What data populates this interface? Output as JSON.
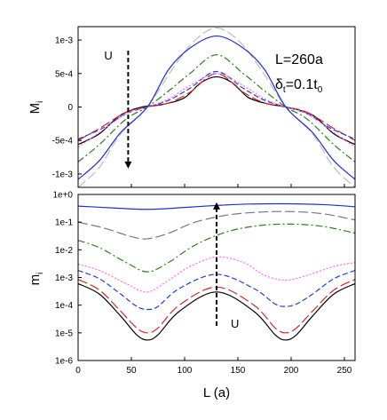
{
  "chart_data": [
    {
      "type": "line",
      "panel": "top",
      "ylabel": "M",
      "ylabel_sub": "i",
      "xlim": [
        0,
        260
      ],
      "ylim": [
        -0.0012,
        0.0012
      ],
      "x_ticks": [
        "0",
        "50",
        "100",
        "150",
        "200",
        "250"
      ],
      "x_tick_values": [
        0,
        50,
        100,
        150,
        200,
        250
      ],
      "y_ticks": [
        "-1e-3",
        "-5e-4",
        "0",
        "5e-4",
        "1e-3"
      ],
      "y_tick_values": [
        -0.001,
        -0.0005,
        0,
        0.0005,
        0.001
      ],
      "annotation_main": "L=260a",
      "annotation_delta": "δ",
      "annotation_delta_sub": "t",
      "annotation_delta_rest": "=0.1t",
      "annotation_delta_sub2": "0",
      "arrow_label": "U",
      "arrow_x": 47,
      "arrow_from": 0.00084,
      "arrow_to": -0.00092,
      "series": [
        {
          "color": "#000000",
          "dash": "solid",
          "values": [
            [
              0,
              -0.00056
            ],
            [
              20,
              -0.0004
            ],
            [
              40,
              -0.00012
            ],
            [
              60,
              0.0
            ],
            [
              80,
              4e-05
            ],
            [
              100,
              0.00014
            ],
            [
              115,
              0.00036
            ],
            [
              130,
              0.00045
            ],
            [
              145,
              0.00036
            ],
            [
              160,
              0.00014
            ],
            [
              180,
              4e-05
            ],
            [
              195,
              0.0
            ],
            [
              220,
              -0.00012
            ],
            [
              240,
              -0.0004
            ],
            [
              260,
              -0.00056
            ]
          ]
        },
        {
          "color": "#d62728",
          "dash": "longdash",
          "values": [
            [
              0,
              -0.0005
            ],
            [
              20,
              -0.00032
            ],
            [
              45,
              -8e-05
            ],
            [
              65,
              0.0
            ],
            [
              85,
              6e-05
            ],
            [
              105,
              0.00022
            ],
            [
              130,
              0.0005
            ],
            [
              155,
              0.00022
            ],
            [
              175,
              6e-05
            ],
            [
              195,
              0.0
            ],
            [
              215,
              -8e-05
            ],
            [
              240,
              -0.00032
            ],
            [
              260,
              -0.0005
            ]
          ]
        },
        {
          "color": "#1f3fd6",
          "dash": "dash",
          "values": [
            [
              0,
              -0.00048
            ],
            [
              25,
              -0.0003
            ],
            [
              45,
              -0.0001
            ],
            [
              65,
              0.0
            ],
            [
              85,
              0.0001
            ],
            [
              105,
              0.00028
            ],
            [
              130,
              0.00053
            ],
            [
              155,
              0.00028
            ],
            [
              175,
              0.0001
            ],
            [
              195,
              0.0
            ],
            [
              215,
              -0.0001
            ],
            [
              235,
              -0.0003
            ],
            [
              260,
              -0.00048
            ]
          ]
        },
        {
          "color": "#ff66ff",
          "dash": "dot",
          "values": [
            [
              0,
              -0.0006
            ],
            [
              20,
              -0.00038
            ],
            [
              45,
              -0.0001
            ],
            [
              65,
              0.0
            ],
            [
              85,
              0.00012
            ],
            [
              105,
              0.00032
            ],
            [
              130,
              0.0005
            ],
            [
              155,
              0.00032
            ],
            [
              175,
              0.00012
            ],
            [
              195,
              0.0
            ],
            [
              215,
              -0.0001
            ],
            [
              240,
              -0.00038
            ],
            [
              260,
              -0.0006
            ]
          ]
        },
        {
          "color": "#2e7d1a",
          "dash": "dashdot",
          "values": [
            [
              0,
              -0.00082
            ],
            [
              20,
              -0.00056
            ],
            [
              45,
              -0.00018
            ],
            [
              65,
              0.0
            ],
            [
              85,
              0.00024
            ],
            [
              105,
              0.0005
            ],
            [
              130,
              0.00078
            ],
            [
              155,
              0.0005
            ],
            [
              175,
              0.00024
            ],
            [
              195,
              0.0
            ],
            [
              215,
              -0.00018
            ],
            [
              240,
              -0.00056
            ],
            [
              260,
              -0.00082
            ]
          ]
        },
        {
          "color": "#bdbdbd",
          "dash": "longdash",
          "values": [
            [
              0,
              -0.0012
            ],
            [
              20,
              -0.0009
            ],
            [
              40,
              -0.0004
            ],
            [
              65,
              0.0
            ],
            [
              90,
              0.0006
            ],
            [
              110,
              0.001
            ],
            [
              130,
              0.00118
            ],
            [
              150,
              0.001
            ],
            [
              170,
              0.0006
            ],
            [
              195,
              0.0
            ],
            [
              220,
              -0.0004
            ],
            [
              240,
              -0.0009
            ],
            [
              260,
              -0.0012
            ]
          ]
        },
        {
          "color": "#1f2fd6",
          "dash": "solid",
          "values": [
            [
              0,
              -0.00108
            ],
            [
              20,
              -0.0008
            ],
            [
              40,
              -0.00038
            ],
            [
              65,
              0.0
            ],
            [
              85,
              0.00056
            ],
            [
              105,
              0.00088
            ],
            [
              130,
              0.00106
            ],
            [
              155,
              0.00088
            ],
            [
              175,
              0.00056
            ],
            [
              195,
              0.0
            ],
            [
              220,
              -0.00038
            ],
            [
              240,
              -0.0008
            ],
            [
              260,
              -0.00108
            ]
          ]
        }
      ]
    },
    {
      "type": "line",
      "panel": "bottom",
      "scale": "log",
      "xlabel": "L (a)",
      "ylabel": "m",
      "ylabel_sub": "i",
      "xlim": [
        0,
        260
      ],
      "ylim": [
        1e-06,
        1
      ],
      "x_ticks": [
        "0",
        "50",
        "100",
        "150",
        "200",
        "250"
      ],
      "x_tick_values": [
        0,
        50,
        100,
        150,
        200,
        250
      ],
      "y_ticks": [
        "1e-6",
        "1e-5",
        "1e-4",
        "1e-3",
        "1e-2",
        "1e-1",
        "1e+0"
      ],
      "y_tick_values": [
        1e-06,
        1e-05,
        0.0001,
        0.001,
        0.01,
        0.1,
        1
      ],
      "arrow_label": "U",
      "arrow_x": 130,
      "arrow_from": 1.8e-05,
      "arrow_to": 0.52,
      "series": [
        {
          "color": "#000000",
          "dash": "solid",
          "values": [
            [
              0,
              0.0006
            ],
            [
              20,
              0.00025
            ],
            [
              40,
              4e-05
            ],
            [
              55,
              8.5e-06
            ],
            [
              65,
              5.5e-06
            ],
            [
              75,
              8.5e-06
            ],
            [
              95,
              6e-05
            ],
            [
              130,
              0.0003
            ],
            [
              165,
              6e-05
            ],
            [
              185,
              8.5e-06
            ],
            [
              195,
              5.5e-06
            ],
            [
              205,
              8.5e-06
            ],
            [
              220,
              4e-05
            ],
            [
              240,
              0.00025
            ],
            [
              260,
              0.0006
            ]
          ]
        },
        {
          "color": "#d62728",
          "dash": "longdash",
          "values": [
            [
              0,
              0.00085
            ],
            [
              20,
              0.00035
            ],
            [
              40,
              6e-05
            ],
            [
              55,
              1.5e-05
            ],
            [
              65,
              1e-05
            ],
            [
              75,
              1.5e-05
            ],
            [
              95,
              0.0001
            ],
            [
              130,
              0.00045
            ],
            [
              165,
              0.0001
            ],
            [
              185,
              1.5e-05
            ],
            [
              195,
              1e-05
            ],
            [
              205,
              1.5e-05
            ],
            [
              220,
              6e-05
            ],
            [
              240,
              0.00035
            ],
            [
              260,
              0.00085
            ]
          ]
        },
        {
          "color": "#1f3fd6",
          "dash": "dash",
          "values": [
            [
              0,
              0.0018
            ],
            [
              20,
              0.0009
            ],
            [
              40,
              0.00025
            ],
            [
              55,
              9e-05
            ],
            [
              65,
              7e-05
            ],
            [
              75,
              9e-05
            ],
            [
              95,
              0.0004
            ],
            [
              130,
              0.0013
            ],
            [
              165,
              0.0004
            ],
            [
              185,
              0.00011
            ],
            [
              195,
              9e-05
            ],
            [
              205,
              0.00011
            ],
            [
              220,
              0.00025
            ],
            [
              240,
              0.0009
            ],
            [
              260,
              0.0018
            ]
          ]
        },
        {
          "color": "#ff66ff",
          "dash": "dot",
          "values": [
            [
              0,
              0.003
            ],
            [
              20,
              0.0018
            ],
            [
              45,
              0.0006
            ],
            [
              65,
              0.0003
            ],
            [
              85,
              0.0008
            ],
            [
              105,
              0.0025
            ],
            [
              130,
              0.0055
            ],
            [
              155,
              0.0035
            ],
            [
              175,
              0.0012
            ],
            [
              195,
              0.0008
            ],
            [
              215,
              0.0012
            ],
            [
              240,
              0.0025
            ],
            [
              260,
              0.0035
            ]
          ]
        },
        {
          "color": "#2e7d1a",
          "dash": "dashdot",
          "values": [
            [
              0,
              0.022
            ],
            [
              20,
              0.012
            ],
            [
              45,
              0.0035
            ],
            [
              65,
              0.0016
            ],
            [
              85,
              0.0035
            ],
            [
              110,
              0.015
            ],
            [
              140,
              0.045
            ],
            [
              170,
              0.075
            ],
            [
              200,
              0.085
            ],
            [
              230,
              0.07
            ],
            [
              260,
              0.04
            ]
          ]
        },
        {
          "color": "#777777",
          "dash": "longdash",
          "values": [
            [
              0,
              0.1
            ],
            [
              25,
              0.06
            ],
            [
              50,
              0.03
            ],
            [
              65,
              0.025
            ],
            [
              85,
              0.04
            ],
            [
              110,
              0.1
            ],
            [
              140,
              0.18
            ],
            [
              170,
              0.23
            ],
            [
              200,
              0.24
            ],
            [
              230,
              0.2
            ],
            [
              260,
              0.12
            ]
          ]
        },
        {
          "color": "#1f2fd6",
          "dash": "solid",
          "values": [
            [
              0,
              0.38
            ],
            [
              30,
              0.33
            ],
            [
              65,
              0.29
            ],
            [
              100,
              0.34
            ],
            [
              130,
              0.4
            ],
            [
              160,
              0.45
            ],
            [
              195,
              0.46
            ],
            [
              230,
              0.43
            ],
            [
              260,
              0.36
            ]
          ]
        }
      ]
    }
  ]
}
